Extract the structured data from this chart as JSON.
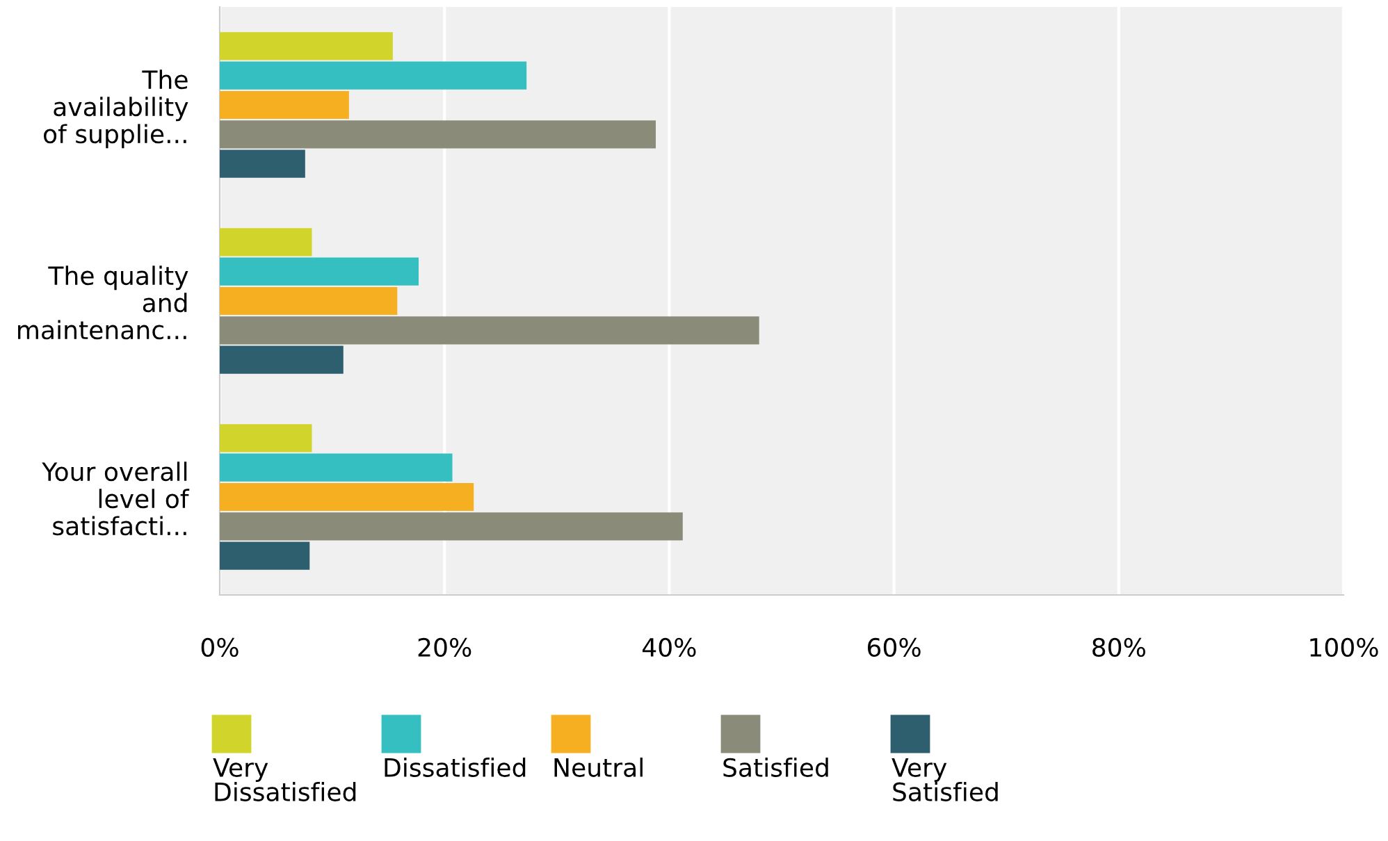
{
  "chart_data": {
    "type": "bar",
    "orientation": "horizontal",
    "categories": [
      "The availability of supplie...",
      "The quality and maintenanc...",
      "Your overall level of satisfacti..."
    ],
    "series": [
      {
        "name": "Very Dissatisfied",
        "color": "#d1d52b",
        "values": [
          15.4,
          8.2,
          8.2
        ]
      },
      {
        "name": "Dissatisfied",
        "color": "#35bfc1",
        "values": [
          27.3,
          17.7,
          20.7
        ]
      },
      {
        "name": "Neutral",
        "color": "#f7af22",
        "values": [
          11.5,
          15.8,
          22.6
        ]
      },
      {
        "name": "Satisfied",
        "color": "#8b8b7a",
        "values": [
          38.8,
          48.0,
          41.2
        ]
      },
      {
        "name": "Very Satisfied",
        "color": "#2e5f6e",
        "values": [
          7.6,
          11.0,
          8.0
        ]
      }
    ],
    "xlim": [
      0,
      100
    ],
    "xticks": [
      {
        "value": 0,
        "label": "0%"
      },
      {
        "value": 20,
        "label": "20%"
      },
      {
        "value": 40,
        "label": "40%"
      },
      {
        "value": 60,
        "label": "60%"
      },
      {
        "value": 80,
        "label": "80%"
      },
      {
        "value": 100,
        "label": "100%"
      }
    ],
    "grid": "x",
    "legend": "bottom"
  }
}
